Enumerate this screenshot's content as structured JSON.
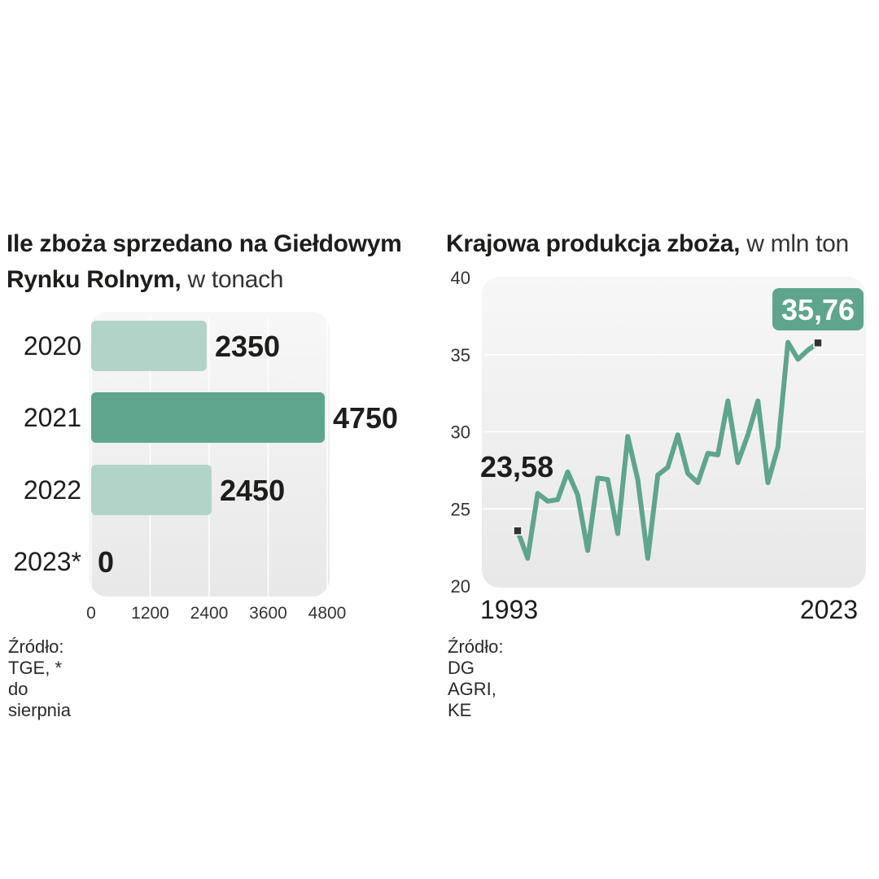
{
  "left_chart": {
    "title_bold": "Ile zboża sprzedano na Giełdowym Rynku Rolnym,",
    "title_line1": "Ile zboża sprzedano na Giełdowym",
    "title_line2_bold": "Rynku Rolnym,",
    "title_unit": " w tonach",
    "source": "Źródło: TGE, * do sierpnia"
  },
  "right_chart": {
    "title_bold": "Krajowa produkcja zboża,",
    "title_unit": " w mln ton",
    "source": "Źródło: DG AGRI, KE",
    "start_label": "23,58",
    "end_label": "35,76"
  },
  "colors": {
    "bar_light": "#b2d4c8",
    "bar_dark": "#5fa58e",
    "line": "#5fa58e",
    "badge": "#5fa58e"
  },
  "chart_data": [
    {
      "type": "bar",
      "orientation": "horizontal",
      "categories": [
        "2020",
        "2021",
        "2022",
        "2023*"
      ],
      "values": [
        2350,
        4750,
        2450,
        0
      ],
      "value_labels": [
        "2350",
        "4750",
        "2450",
        "0"
      ],
      "xlim": [
        0,
        4800
      ],
      "xticks": [
        "0",
        "1200",
        "2400",
        "3600",
        "4800"
      ],
      "grid": true
    },
    {
      "type": "line",
      "x": [
        1993,
        1994,
        1995,
        1996,
        1997,
        1998,
        1999,
        2000,
        2001,
        2002,
        2003,
        2004,
        2005,
        2006,
        2007,
        2008,
        2009,
        2010,
        2011,
        2012,
        2013,
        2014,
        2015,
        2016,
        2017,
        2018,
        2019,
        2020,
        2021,
        2022,
        2023
      ],
      "values": [
        23.58,
        21.8,
        26.0,
        25.5,
        25.6,
        27.4,
        25.9,
        22.3,
        27.0,
        26.9,
        23.4,
        29.7,
        26.9,
        21.8,
        27.2,
        27.7,
        29.8,
        27.3,
        26.7,
        28.6,
        28.5,
        32.0,
        28.0,
        29.8,
        32.0,
        26.7,
        29.0,
        35.8,
        34.7,
        35.3,
        35.76
      ],
      "x_labels": [
        "1993",
        "2023"
      ],
      "ylim": [
        20,
        40
      ],
      "yticks": [
        "20",
        "25",
        "30",
        "35",
        "40"
      ],
      "grid": true
    }
  ]
}
